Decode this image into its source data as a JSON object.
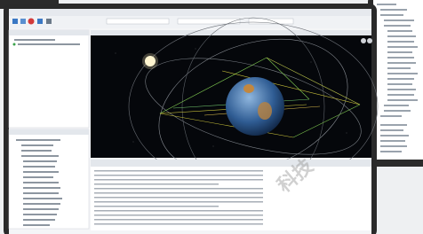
{
  "watermark": "科技"
}
